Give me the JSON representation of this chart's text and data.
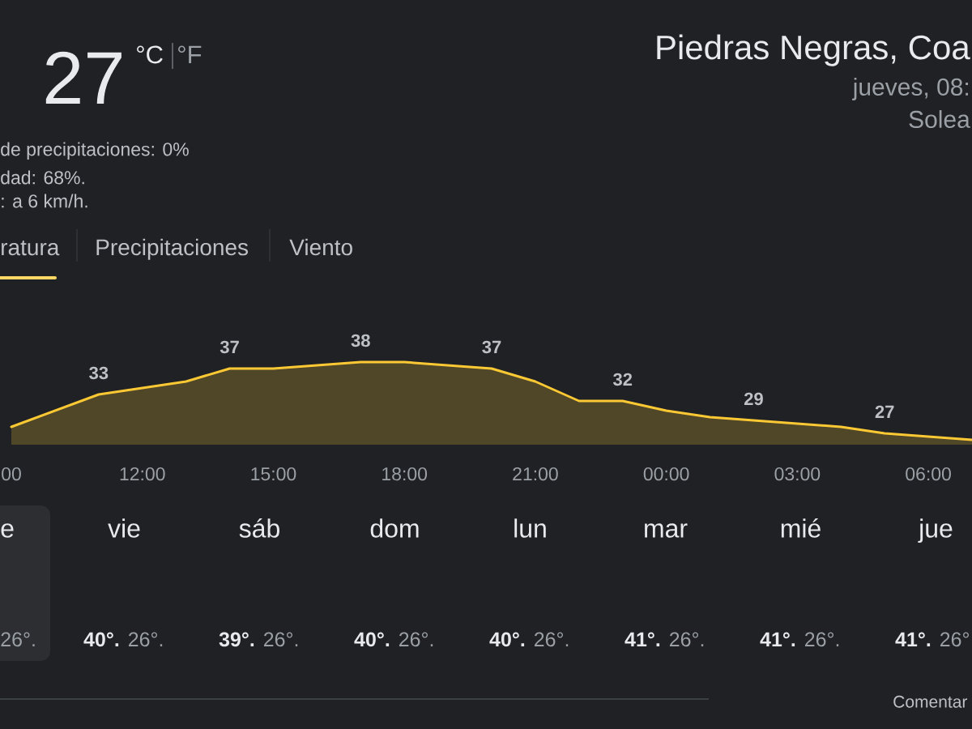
{
  "chart_data": [
    {
      "type": "area",
      "title": "Piedras Negras, Coa",
      "subtitle": "jueves, 08:",
      "annotations": [
        "Solea",
        "27",
        "°C",
        "°F",
        "de precipitaciones: 0%",
        "dad: 68%.",
        ": a 6 km/h.",
        "ratura",
        "Precipitaciones",
        "Viento"
      ],
      "categories": [
        "00",
        null,
        null,
        "12:00",
        null,
        null,
        "15:00",
        null,
        null,
        "18:00",
        null,
        null,
        "21:00",
        null,
        null,
        "00:00",
        null,
        null,
        "03:00",
        null,
        null,
        "06:00",
        null
      ],
      "values": [
        28,
        30.5,
        33,
        34,
        35,
        37,
        37,
        37.5,
        38,
        38,
        37.5,
        37,
        35,
        32,
        32,
        30.5,
        29.5,
        29,
        28.5,
        28,
        27,
        26.5,
        26
      ],
      "value_labels": [
        null,
        null,
        "33",
        null,
        null,
        "37",
        null,
        null,
        "38",
        null,
        null,
        "37",
        null,
        null,
        "32",
        null,
        null,
        "29",
        null,
        null,
        "27",
        null,
        null
      ],
      "color": "#fcc934",
      "tick_labels": "x"
    },
    {
      "type": "other",
      "categories": [
        "e",
        "vie",
        "sáb",
        "dom",
        "lun",
        "mar",
        "mié",
        "jue"
      ],
      "annotations": [
        "26°.",
        "40°.",
        "26°.",
        "39°.",
        "26°.",
        "40°.",
        "26°.",
        "40°.",
        "26°.",
        "41°.",
        "26°.",
        "41°.",
        "26°.",
        "41°.",
        "26°",
        "Comentar"
      ]
    }
  ]
}
